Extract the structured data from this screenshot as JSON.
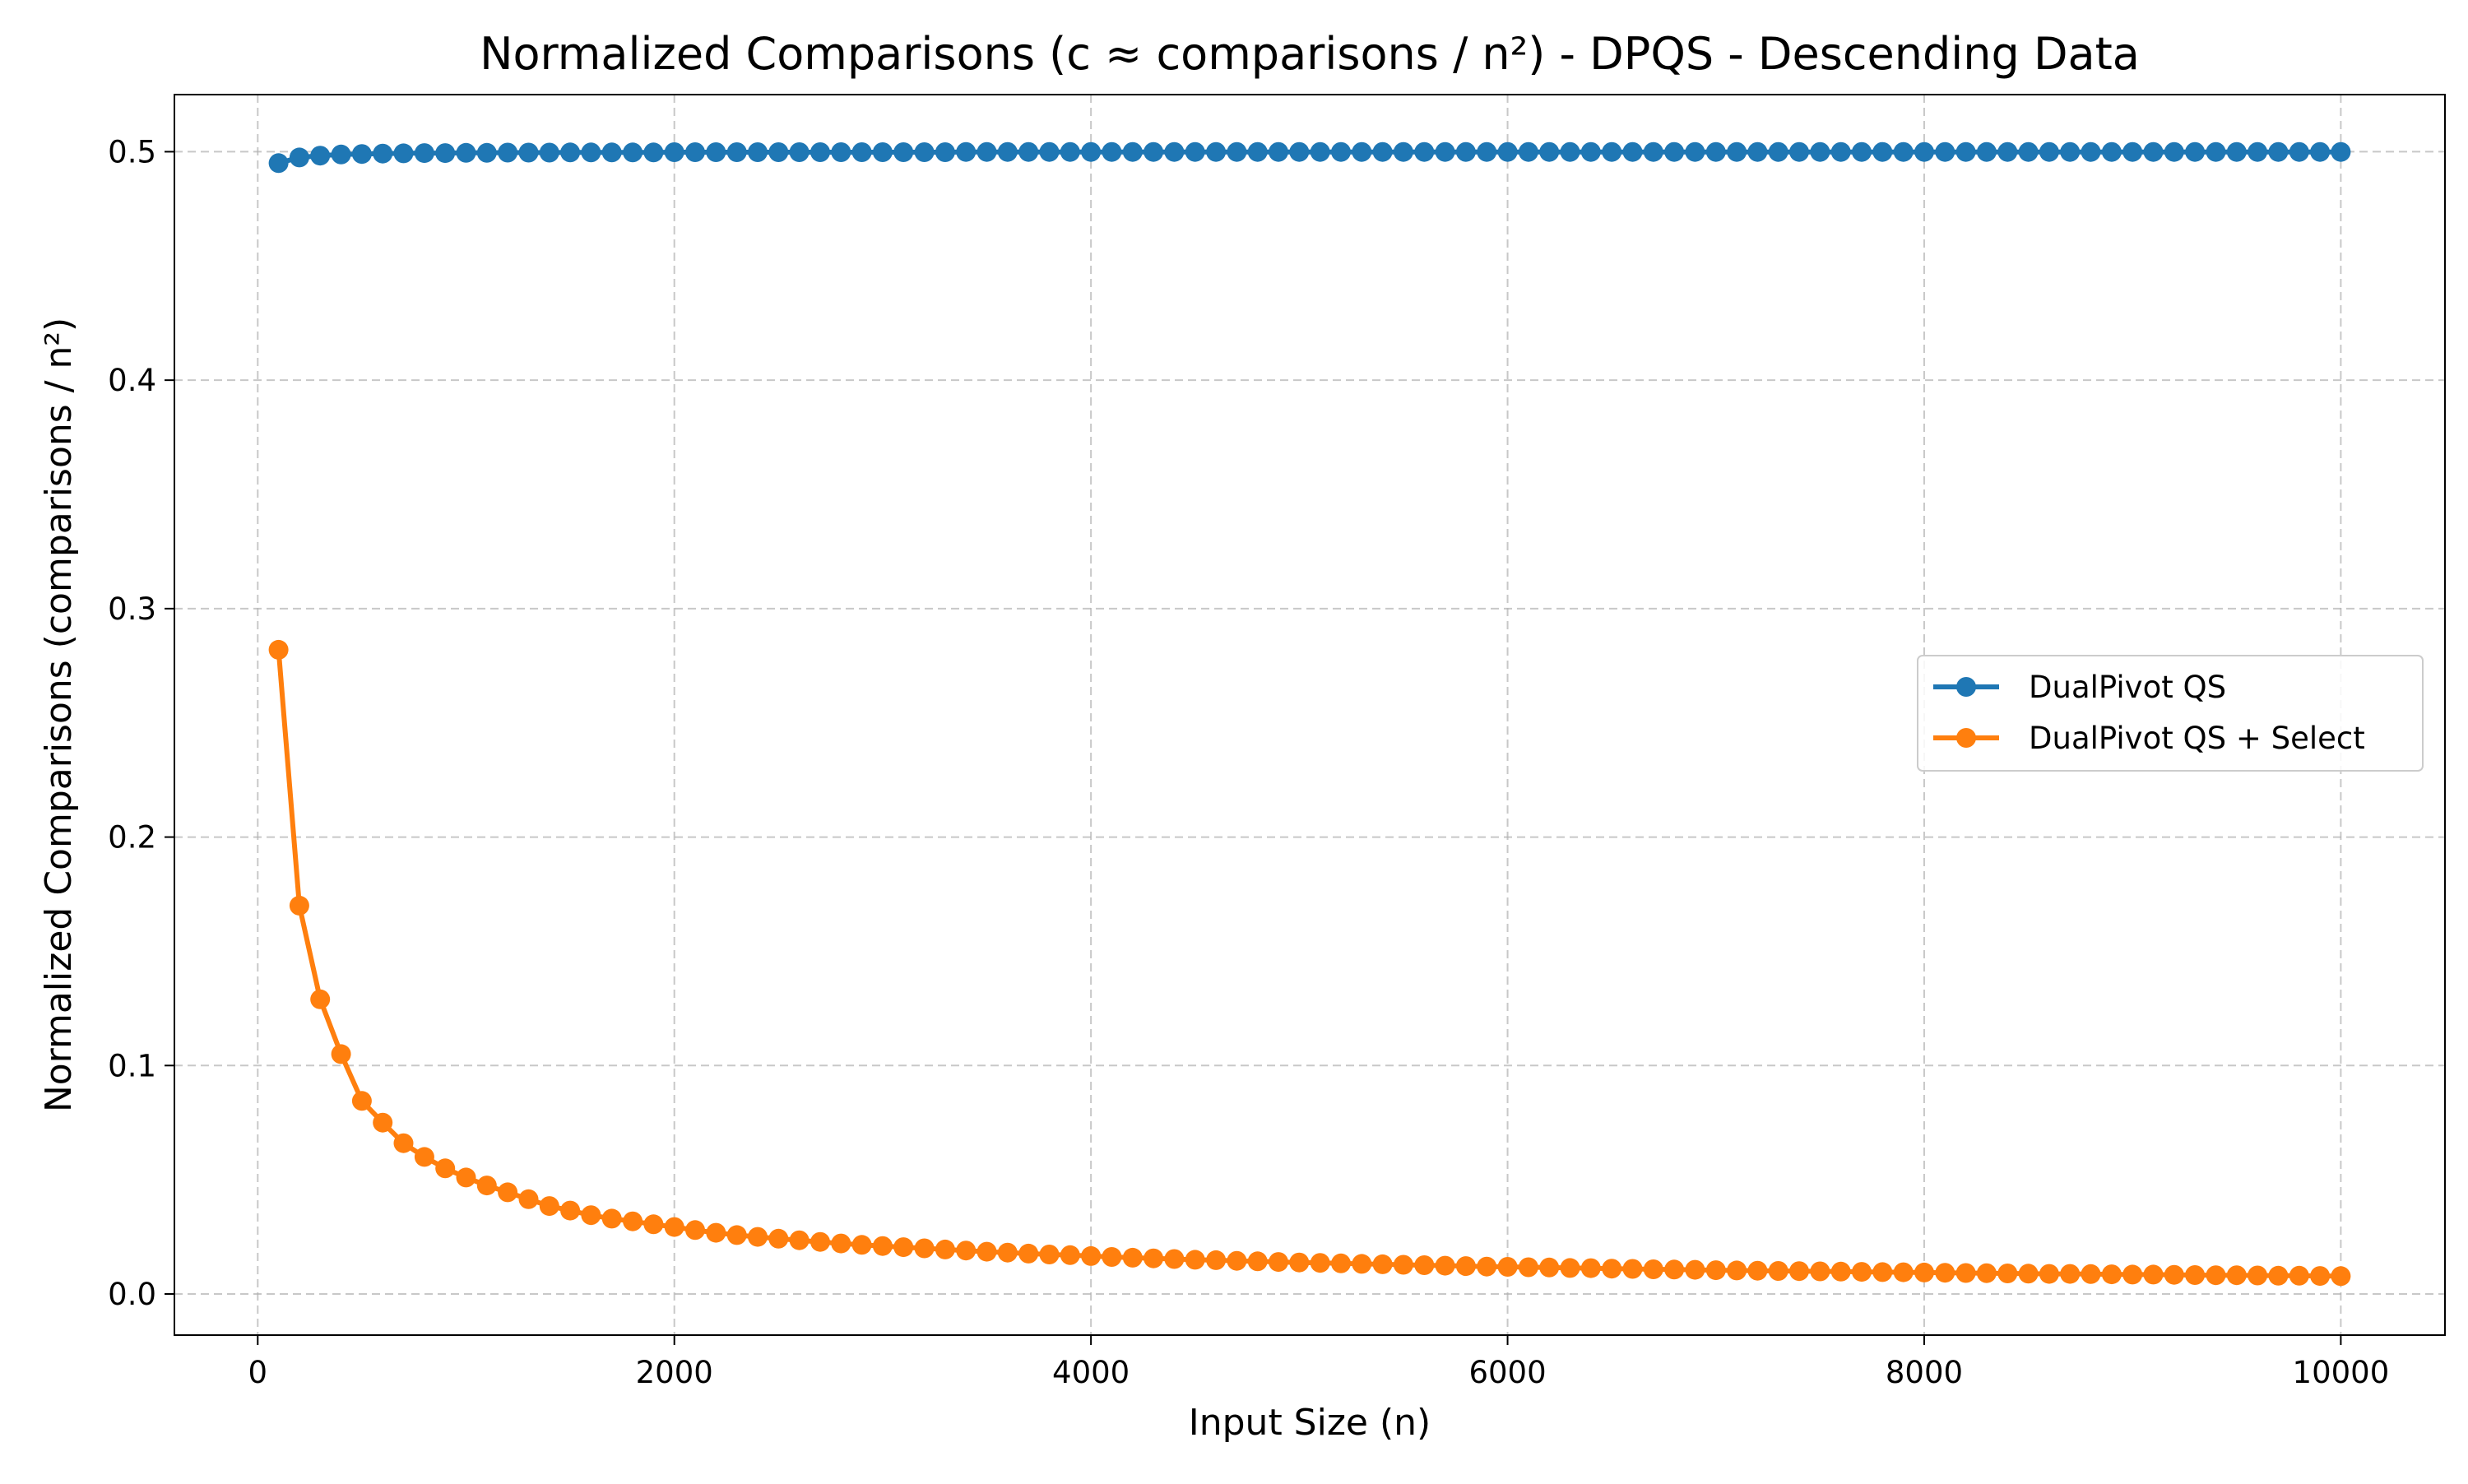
{
  "chart_data": {
    "type": "line",
    "title": "Normalized Comparisons (c ≈ comparisons / n²) - DPQS - Descending Data",
    "xlabel": "Input Size (n)",
    "ylabel": "Normalized Comparisons (comparisons / n²)",
    "xlim": [
      -400,
      10500
    ],
    "ylim": [
      -0.018,
      0.525
    ],
    "xticks": [
      0,
      2000,
      4000,
      6000,
      8000,
      10000
    ],
    "xtick_labels": [
      "0",
      "2000",
      "4000",
      "6000",
      "8000",
      "10000"
    ],
    "yticks": [
      0.0,
      0.1,
      0.2,
      0.3,
      0.4,
      0.5
    ],
    "ytick_labels": [
      "0.0",
      "0.1",
      "0.2",
      "0.3",
      "0.4",
      "0.5"
    ],
    "grid": true,
    "legend_position": "center-right",
    "x": [
      100,
      200,
      300,
      400,
      500,
      600,
      700,
      800,
      900,
      1000,
      1100,
      1200,
      1300,
      1400,
      1500,
      1600,
      1700,
      1800,
      1900,
      2000,
      2100,
      2200,
      2300,
      2400,
      2500,
      2600,
      2700,
      2800,
      2900,
      3000,
      3100,
      3200,
      3300,
      3400,
      3500,
      3600,
      3700,
      3800,
      3900,
      4000,
      4100,
      4200,
      4300,
      4400,
      4500,
      4600,
      4700,
      4800,
      4900,
      5000,
      5100,
      5200,
      5300,
      5400,
      5500,
      5600,
      5700,
      5800,
      5900,
      6000,
      6100,
      6200,
      6300,
      6400,
      6500,
      6600,
      6700,
      6800,
      6900,
      7000,
      7100,
      7200,
      7300,
      7400,
      7500,
      7600,
      7700,
      7800,
      7900,
      8000,
      8100,
      8200,
      8300,
      8400,
      8500,
      8600,
      8700,
      8800,
      8900,
      9000,
      9100,
      9200,
      9300,
      9400,
      9500,
      9600,
      9700,
      9800,
      9900,
      10000
    ],
    "series": [
      {
        "name": "DualPivot QS",
        "color": "#1f77b4",
        "values": [
          0.495,
          0.4975,
          0.4983,
          0.4988,
          0.499,
          0.4992,
          0.4993,
          0.4994,
          0.4994,
          0.4995,
          0.4995,
          0.4996,
          0.4996,
          0.4996,
          0.4997,
          0.4997,
          0.4997,
          0.4997,
          0.4997,
          0.4998,
          0.4998,
          0.4998,
          0.4998,
          0.4998,
          0.4998,
          0.4998,
          0.4998,
          0.4998,
          0.4998,
          0.4998,
          0.4998,
          0.4998,
          0.4998,
          0.4999,
          0.4999,
          0.4999,
          0.4999,
          0.4999,
          0.4999,
          0.4999,
          0.4999,
          0.4999,
          0.4999,
          0.4999,
          0.4999,
          0.4999,
          0.4999,
          0.4999,
          0.4999,
          0.4999,
          0.4999,
          0.4999,
          0.4999,
          0.4999,
          0.4999,
          0.4999,
          0.4999,
          0.4999,
          0.4999,
          0.4999,
          0.4999,
          0.4999,
          0.4999,
          0.4999,
          0.4999,
          0.4999,
          0.4999,
          0.4999,
          0.4999,
          0.4999,
          0.4999,
          0.4999,
          0.4999,
          0.4999,
          0.4999,
          0.4999,
          0.4999,
          0.4999,
          0.4999,
          0.4999,
          0.4999,
          0.4999,
          0.4999,
          0.4999,
          0.4999,
          0.4999,
          0.4999,
          0.4999,
          0.4999,
          0.4999,
          0.4999,
          0.4999,
          0.4999,
          0.4999,
          0.4999,
          0.4999,
          0.4999,
          0.4999,
          0.4999,
          0.4999
        ]
      },
      {
        "name": "DualPivot QS + Select",
        "color": "#ff7f0e",
        "values": [
          0.282,
          0.17,
          0.129,
          0.105,
          0.0845,
          0.075,
          0.066,
          0.06,
          0.055,
          0.051,
          0.0475,
          0.0445,
          0.0415,
          0.0385,
          0.0365,
          0.0345,
          0.033,
          0.0318,
          0.0305,
          0.0293,
          0.028,
          0.0268,
          0.0258,
          0.025,
          0.0242,
          0.0235,
          0.0228,
          0.0221,
          0.0215,
          0.021,
          0.0205,
          0.02,
          0.0195,
          0.019,
          0.0185,
          0.0181,
          0.0177,
          0.0173,
          0.017,
          0.0166,
          0.0162,
          0.0159,
          0.0156,
          0.0153,
          0.015,
          0.0148,
          0.0145,
          0.0143,
          0.014,
          0.0138,
          0.0136,
          0.0134,
          0.0132,
          0.013,
          0.0128,
          0.0126,
          0.0124,
          0.0122,
          0.012,
          0.0119,
          0.0117,
          0.0116,
          0.0114,
          0.0113,
          0.0111,
          0.011,
          0.0108,
          0.0107,
          0.0106,
          0.0104,
          0.0103,
          0.0102,
          0.0101,
          0.01,
          0.0099,
          0.0098,
          0.0097,
          0.0096,
          0.0095,
          0.0094,
          0.0093,
          0.0092,
          0.0091,
          0.009,
          0.0089,
          0.0088,
          0.0088,
          0.0087,
          0.0086,
          0.0085,
          0.0085,
          0.0084,
          0.0083,
          0.0082,
          0.0082,
          0.0081,
          0.008,
          0.008,
          0.0079,
          0.0078
        ]
      }
    ]
  }
}
